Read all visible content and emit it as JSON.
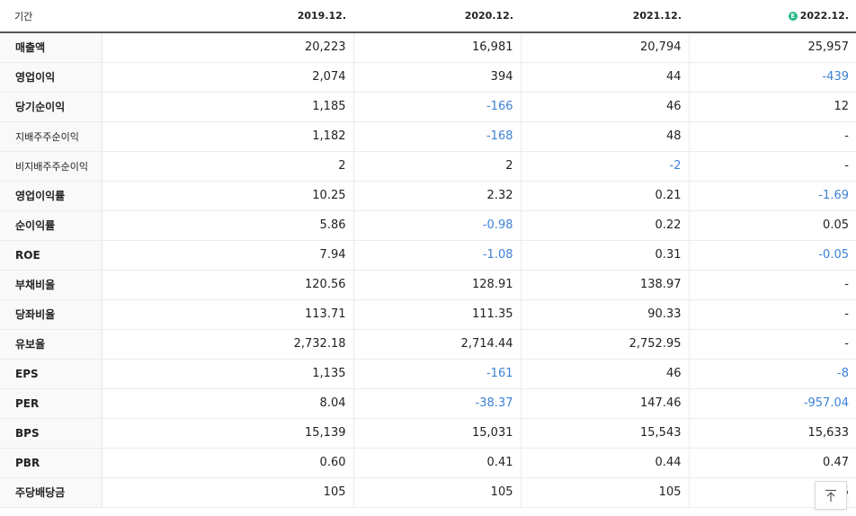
{
  "header": {
    "label": "기간",
    "periods": [
      "2019.12.",
      "2020.12.",
      "2021.12.",
      "2022.12."
    ],
    "estimate_badge": "E"
  },
  "rows": [
    {
      "label": "매출액",
      "values": [
        "20,223",
        "16,981",
        "20,794",
        "25,957"
      ]
    },
    {
      "label": "영업이익",
      "values": [
        "2,074",
        "394",
        "44",
        "-439"
      ]
    },
    {
      "label": "당기순이익",
      "values": [
        "1,185",
        "-166",
        "46",
        "12"
      ]
    },
    {
      "label": "지배주주순이익",
      "values": [
        "1,182",
        "-168",
        "48",
        "-"
      ]
    },
    {
      "label": "비지배주주순이익",
      "values": [
        "2",
        "2",
        "-2",
        "-"
      ]
    },
    {
      "label": "영업이익률",
      "values": [
        "10.25",
        "2.32",
        "0.21",
        "-1.69"
      ]
    },
    {
      "label": "순이익률",
      "values": [
        "5.86",
        "-0.98",
        "0.22",
        "0.05"
      ]
    },
    {
      "label": "ROE",
      "values": [
        "7.94",
        "-1.08",
        "0.31",
        "-0.05"
      ]
    },
    {
      "label": "부채비율",
      "values": [
        "120.56",
        "128.91",
        "138.97",
        "-"
      ]
    },
    {
      "label": "당좌비율",
      "values": [
        "113.71",
        "111.35",
        "90.33",
        "-"
      ]
    },
    {
      "label": "유보율",
      "values": [
        "2,732.18",
        "2,714.44",
        "2,752.95",
        "-"
      ]
    },
    {
      "label": "EPS",
      "values": [
        "1,135",
        "-161",
        "46",
        "-8"
      ]
    },
    {
      "label": "PER",
      "values": [
        "8.04",
        "-38.37",
        "147.46",
        "-957.04"
      ]
    },
    {
      "label": "BPS",
      "values": [
        "15,139",
        "15,031",
        "15,543",
        "15,633"
      ]
    },
    {
      "label": "PBR",
      "values": [
        "0.60",
        "0.41",
        "0.44",
        "0.47"
      ]
    },
    {
      "label": "주당배당금",
      "values": [
        "105",
        "105",
        "105",
        "105"
      ]
    }
  ],
  "colors": {
    "negative": "#3d82d6",
    "estimate_badge": "#26b887"
  },
  "scroll_top_icon": "arrow-up-to-top-icon"
}
